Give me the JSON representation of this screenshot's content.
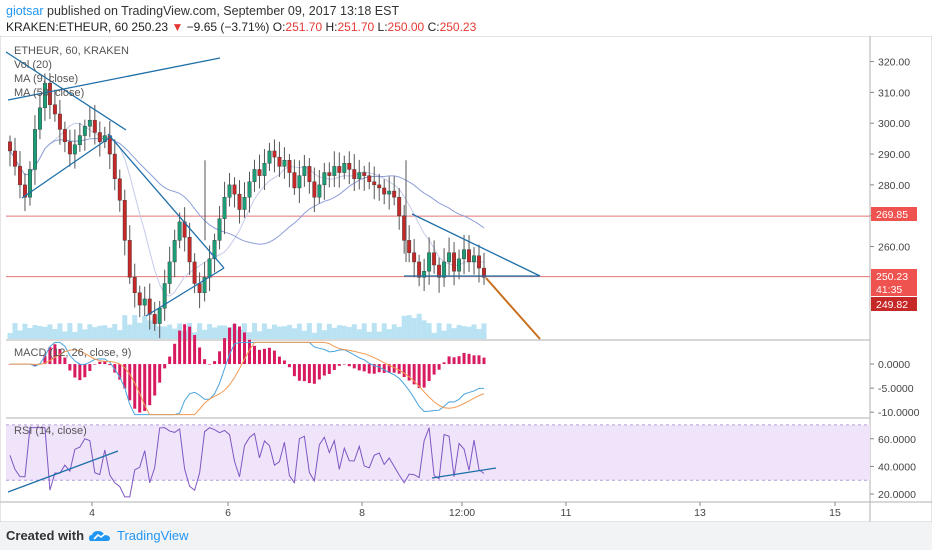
{
  "header": {
    "author": "giotsar",
    "published_text": "published on TradingView.com, September 09, 2017 13:18 EST",
    "symbol_line": "KRAKEN:ETHEUR, 60",
    "last": "250.23",
    "change": "−9.65 (−3.71%)",
    "o_label": "O:",
    "o_value": "251.70",
    "h_label": "H:",
    "h_value": "251.70",
    "l_label": "L:",
    "l_value": "250.00",
    "c_label": "C:",
    "c_value": "250.23"
  },
  "footer": {
    "created_with": "Created with",
    "brand": "TradingView"
  },
  "colors": {
    "up": "#26a69a",
    "down": "#ef5350",
    "candle_body_up": "#1b9e77",
    "candle_body_down": "#c62828",
    "trendline": "#1e6fa8",
    "projection": "#c8701e",
    "level": "#e57373",
    "ma_line": "#8e9fd8",
    "volume": "#80cbe8",
    "macd_line": "#4aa3df",
    "signal_line": "#f29a52",
    "histogram": "#d81b60",
    "rsi_line": "#7e57c2",
    "rsi_band": "#f0e4fb"
  },
  "chart_data": [
    {
      "type": "candlestick",
      "title": "ETHEUR, 60, KRAKEN",
      "legend": [
        "Vol (20)",
        "MA (9, close)",
        "MA (50, close)"
      ],
      "ylim": [
        230,
        327
      ],
      "y_ticks": [
        "320.00",
        "310.00",
        "300.00",
        "290.00",
        "280.00",
        "270.00",
        "260.00"
      ],
      "price_labels": [
        "269.85",
        "250.23",
        "41:35",
        "249.82"
      ],
      "levels": [
        269.85,
        250.23
      ],
      "x_ticks": [
        "4",
        "6",
        "8",
        "12:00",
        "11",
        "13",
        "15"
      ],
      "approx_close_series": [
        291,
        286,
        280,
        276,
        285,
        298,
        305,
        313,
        306,
        303,
        298,
        294,
        290,
        293,
        296,
        299,
        301,
        297,
        294,
        296,
        290,
        282,
        275,
        262,
        250,
        245,
        241,
        243,
        238,
        235,
        240,
        248,
        255,
        262,
        268,
        263,
        255,
        248,
        245,
        250,
        256,
        262,
        269,
        276,
        280,
        277,
        272,
        276,
        281,
        285,
        283,
        287,
        291,
        289,
        286,
        288,
        284,
        279,
        283,
        286,
        281,
        276,
        280,
        284,
        283,
        286,
        284,
        287,
        285,
        282,
        284,
        283,
        281,
        280,
        279,
        277,
        278,
        276,
        270,
        262,
        258,
        255,
        250,
        252,
        258,
        254,
        250,
        255,
        258,
        252,
        256,
        259,
        255,
        257,
        253,
        250
      ]
    },
    {
      "type": "line",
      "title": "MACD (12, 26, close, 9)",
      "y_ticks": [
        "0.0000",
        "-5.0000",
        "-10.0000"
      ],
      "ylim": [
        -11,
        5
      ]
    },
    {
      "type": "line",
      "title": "RSI (14, close)",
      "y_ticks": [
        "60.0000",
        "40.0000",
        "20.0000"
      ],
      "band": [
        30,
        70
      ],
      "ylim": [
        15,
        75
      ]
    }
  ]
}
